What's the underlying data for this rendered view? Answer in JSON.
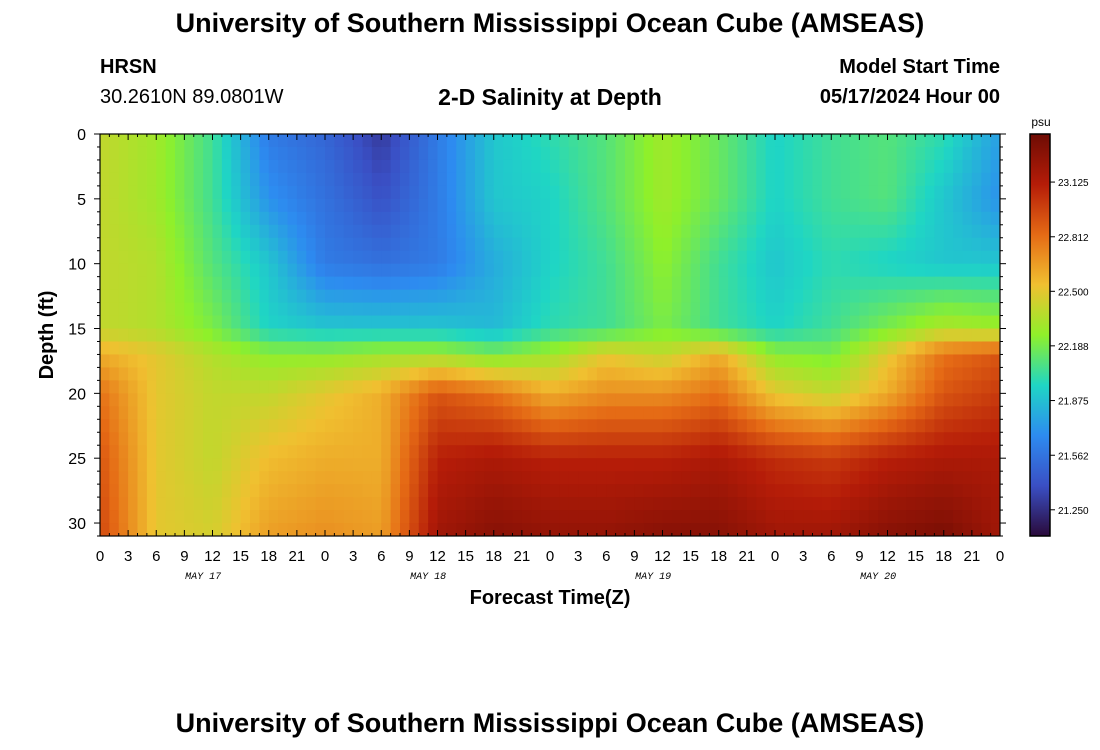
{
  "header": {
    "title": "University of Southern Mississippi Ocean Cube (AMSEAS)",
    "station": "HRSN",
    "coordinates": "30.2610N  89.0801W",
    "subtitle": "2-D Salinity at Depth",
    "model_start_label": "Model Start Time",
    "model_start_value": "05/17/2024 Hour 00"
  },
  "footer": {
    "title": "University of Southern Mississippi Ocean Cube (AMSEAS)"
  },
  "chart_data": {
    "type": "heatmap",
    "title": "2-D Salinity at Depth",
    "xlabel": "Forecast Time(Z)",
    "ylabel": "Depth (ft)",
    "x_range_hours": [
      0,
      96
    ],
    "x_tick_step_hours": 3,
    "x_tick_labels": [
      "0",
      "3",
      "6",
      "9",
      "12",
      "15",
      "18",
      "21",
      "0",
      "3",
      "6",
      "9",
      "12",
      "15",
      "18",
      "21",
      "0",
      "3",
      "6",
      "9",
      "12",
      "15",
      "18",
      "21",
      "0",
      "3",
      "6",
      "9",
      "12",
      "15",
      "18",
      "21",
      "0"
    ],
    "x_date_labels": [
      {
        "label": "MAY 17",
        "hour": 11
      },
      {
        "label": "MAY 18",
        "hour": 35
      },
      {
        "label": "MAY 19",
        "hour": 59
      },
      {
        "label": "MAY 20",
        "hour": 83
      }
    ],
    "y_range": [
      0,
      31
    ],
    "y_reversed": true,
    "y_ticks": [
      0,
      5,
      10,
      15,
      20,
      25,
      30
    ],
    "colorbar": {
      "units": "psu",
      "min": 21.1,
      "max": 23.4,
      "ticks": [
        "23.125",
        "22.812",
        "22.500",
        "22.188",
        "21.875",
        "21.562",
        "21.250"
      ]
    },
    "grid": {
      "times": [
        0,
        6,
        12,
        18,
        24,
        30,
        36,
        42,
        48,
        54,
        60,
        66,
        72,
        78,
        84,
        90,
        96
      ],
      "depths": [
        0,
        5,
        10,
        15,
        17,
        20,
        25,
        31
      ],
      "values": [
        [
          22.4,
          22.3,
          22.05,
          21.6,
          21.5,
          21.3,
          21.6,
          21.9,
          22.0,
          22.1,
          22.3,
          22.15,
          21.95,
          22.05,
          22.1,
          22.0,
          21.75
        ],
        [
          22.4,
          22.3,
          22.05,
          21.7,
          21.55,
          21.4,
          21.6,
          21.9,
          21.95,
          22.1,
          22.3,
          22.15,
          21.95,
          22.05,
          22.1,
          21.9,
          21.7
        ],
        [
          22.4,
          22.35,
          22.1,
          21.9,
          21.6,
          21.55,
          21.6,
          21.8,
          21.95,
          22.05,
          22.25,
          22.05,
          21.9,
          22.0,
          21.95,
          21.9,
          21.9
        ],
        [
          22.4,
          22.35,
          22.2,
          21.95,
          21.9,
          21.9,
          21.9,
          21.85,
          22.0,
          22.05,
          22.2,
          22.05,
          21.95,
          22.05,
          22.2,
          22.35,
          22.3
        ],
        [
          22.6,
          22.5,
          22.35,
          22.25,
          22.25,
          22.3,
          22.3,
          22.2,
          22.3,
          22.5,
          22.4,
          22.6,
          22.25,
          22.2,
          22.5,
          22.8,
          22.9
        ],
        [
          22.8,
          22.5,
          22.4,
          22.4,
          22.5,
          22.6,
          22.9,
          22.8,
          22.6,
          22.7,
          22.7,
          22.8,
          22.5,
          22.4,
          22.6,
          22.9,
          23.0
        ],
        [
          22.9,
          22.5,
          22.4,
          22.55,
          22.6,
          22.6,
          23.1,
          23.15,
          23.1,
          23.1,
          23.1,
          23.15,
          23.05,
          23.0,
          23.1,
          23.15,
          23.15
        ],
        [
          22.95,
          22.5,
          22.45,
          22.65,
          22.7,
          22.65,
          23.2,
          23.3,
          23.25,
          23.25,
          23.3,
          23.3,
          23.2,
          23.2,
          23.3,
          23.35,
          23.2
        ]
      ]
    }
  },
  "colors": {
    "colormap": [
      "#2a0a3a",
      "#3a4fc4",
      "#2d8bf0",
      "#1fd6c4",
      "#8ff02a",
      "#f0c030",
      "#e56a15",
      "#b51c08",
      "#6e0c04"
    ]
  }
}
